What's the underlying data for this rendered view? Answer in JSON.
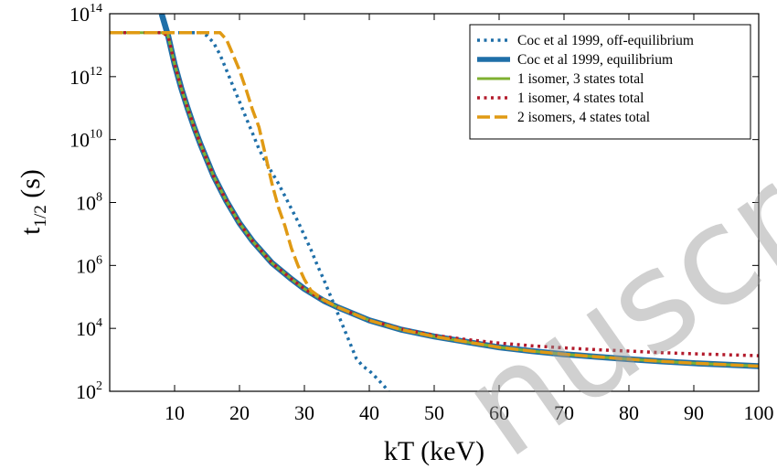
{
  "chart_data": {
    "type": "line",
    "x_label": "kT (keV)",
    "y_label_main": "t",
    "y_label_sub": "1/2",
    "y_label_unit": " (s)",
    "y_scale": "log",
    "xlim": [
      0,
      100
    ],
    "ylim": [
      100,
      100000000000000
    ],
    "x_ticks": [
      10,
      20,
      30,
      40,
      50,
      60,
      70,
      80,
      90,
      100
    ],
    "x_tick_labels": [
      "10",
      "20",
      "30",
      "40",
      "50",
      "60",
      "70",
      "80",
      "90",
      "100"
    ],
    "y_ticks": [
      2,
      4,
      6,
      8,
      10,
      12,
      14
    ],
    "y_tick_base": "10",
    "y_tick_exponents": [
      "2",
      "4",
      "6",
      "8",
      "10",
      "12",
      "14"
    ],
    "legend_position": "top-right",
    "series": [
      {
        "name": "Coc et al 1999, off-equilibrium",
        "color": "#1f6fa8",
        "style": "dotted",
        "x": [
          0,
          14,
          15,
          16,
          17,
          18,
          19,
          20,
          21,
          22,
          23,
          24,
          25,
          26,
          27,
          28,
          29,
          30,
          31,
          32,
          33,
          34,
          35,
          36,
          37,
          38,
          39,
          40,
          41,
          42,
          43
        ],
        "y": [
          25000000000000.0,
          25000000000000.0,
          20000000000000.0,
          12000000000000.0,
          5000000000000.0,
          1600000000000.0,
          500000000000.0,
          160000000000.0,
          50000000000.0,
          16000000000.0,
          5000000000.0,
          2000000000.0,
          900000000.0,
          400000000.0,
          160000000.0,
          63000000.0,
          25000000.0,
          8900000.0,
          3200000.0,
          1000000.0,
          350000.0,
          110000.0,
          35000.0,
          11000.0,
          3500,
          1100,
          630,
          450,
          280,
          170,
          100
        ]
      },
      {
        "name": "Coc et al 1999, equilibrium",
        "color": "#1f6fa8",
        "style": "solid",
        "x": [
          8,
          9,
          10,
          11,
          12,
          13,
          14,
          16,
          18,
          20,
          22,
          25,
          28,
          30,
          33,
          35,
          40,
          45,
          50,
          55,
          60,
          65,
          70,
          75,
          80,
          85,
          90,
          95,
          100
        ],
        "y": [
          100000000000000.0,
          20000000000000.0,
          2500000000000.0,
          450000000000.0,
          100000000000.0,
          25000000000.0,
          7000000000.0,
          700000000.0,
          110000000.0,
          22000000.0,
          6000000.0,
          1200000.0,
          370000.0,
          180000.0,
          75000.0,
          48000.0,
          18000.0,
          9000.0,
          5500.0,
          3700.0,
          2500.0,
          1900.0,
          1500.0,
          1250.0,
          1050.0,
          900,
          780,
          700,
          630
        ]
      },
      {
        "name": "1 isomer, 3 states total",
        "color": "#7fb031",
        "style": "solid",
        "x": [
          0,
          8,
          9,
          10,
          11,
          12,
          13,
          14,
          16,
          18,
          20,
          22,
          25,
          28,
          30,
          33,
          35,
          40,
          45,
          50,
          55,
          60,
          65,
          70,
          75,
          80,
          85,
          90,
          95,
          100
        ],
        "y": [
          25000000000000.0,
          25000000000000.0,
          20000000000000.0,
          2500000000000.0,
          450000000000.0,
          100000000000.0,
          25000000000.0,
          7000000000.0,
          700000000.0,
          110000000.0,
          22000000.0,
          6000000.0,
          1200000.0,
          370000.0,
          180000.0,
          75000.0,
          48000.0,
          18000.0,
          9000.0,
          5500.0,
          3700.0,
          2500.0,
          1900.0,
          1500.0,
          1250.0,
          1050.0,
          900,
          780,
          700,
          630
        ]
      },
      {
        "name": "1 isomer, 4 states total",
        "color": "#b31b2c",
        "style": "dotted",
        "x": [
          0,
          8,
          9,
          10,
          11,
          12,
          13,
          14,
          16,
          18,
          20,
          22,
          25,
          28,
          30,
          33,
          35,
          40,
          45,
          50,
          55,
          60,
          65,
          70,
          75,
          80,
          85,
          90,
          95,
          100
        ],
        "y": [
          25000000000000.0,
          25000000000000.0,
          20000000000000.0,
          2500000000000.0,
          450000000000.0,
          100000000000.0,
          25000000000.0,
          7000000000.0,
          700000000.0,
          110000000.0,
          22000000.0,
          6000000.0,
          1200000.0,
          370000.0,
          180000.0,
          75000.0,
          48000.0,
          18000.0,
          9500.0,
          6000.0,
          4400.0,
          3400.0,
          2800.0,
          2400.0,
          2100.0,
          1900.0,
          1700.0,
          1550.0,
          1450.0,
          1350.0
        ]
      },
      {
        "name": "2 isomers, 4 states total",
        "color": "#e09a14",
        "style": "dashed",
        "x": [
          0,
          17,
          18,
          19,
          20,
          21,
          22,
          23,
          24,
          25,
          26,
          27,
          28,
          29,
          30,
          31,
          33,
          35,
          40,
          45,
          50,
          55,
          60,
          65,
          70,
          75,
          80,
          85,
          90,
          95,
          100
        ],
        "y": [
          25000000000000.0,
          25000000000000.0,
          15000000000000.0,
          5000000000000.0,
          1600000000000.0,
          400000000000.0,
          89000000000.0,
          25000000000.0,
          3200000000.0,
          400000000.0,
          70000000.0,
          18000000.0,
          3500000.0,
          1000000.0,
          360000.0,
          160000.0,
          80000.0,
          48000.0,
          18000.0,
          9000.0,
          5500.0,
          3700.0,
          2500.0,
          1900.0,
          1500.0,
          1250.0,
          1050.0,
          900,
          780,
          700,
          630
        ]
      }
    ]
  },
  "watermark": {
    "text": "nuscr",
    "color": "#999999"
  }
}
